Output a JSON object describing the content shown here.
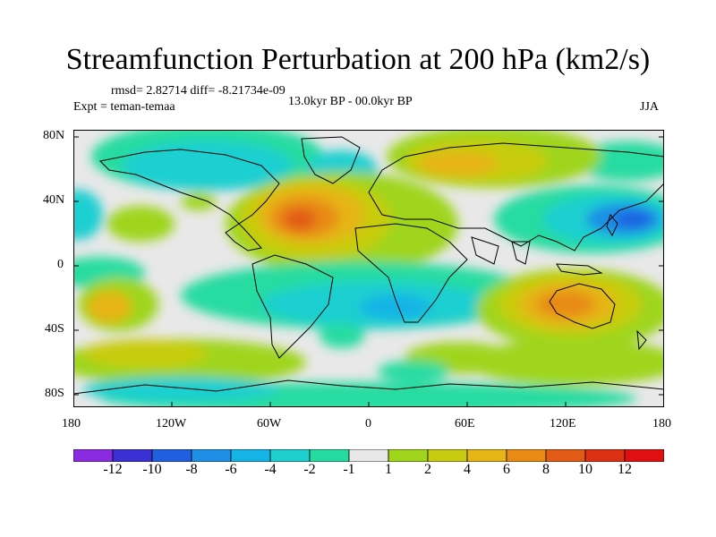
{
  "title": "Streamfunction Perturbation at 200 hPa (km2/s)",
  "stats": "rmsd= 2.82714 diff= -8.21734e-09",
  "expt": "Expt = teman-temaa",
  "period": "13.0kyr BP - 00.0kyr BP",
  "season": "JJA",
  "y_ticks": [
    "80N",
    "40N",
    "0",
    "40S",
    "80S"
  ],
  "x_ticks": [
    "180",
    "120W",
    "60W",
    "0",
    "60E",
    "120E",
    "180"
  ],
  "colorbar": {
    "labels": [
      "-12",
      "-10",
      "-8",
      "-6",
      "-4",
      "-2",
      "-1",
      "1",
      "2",
      "4",
      "6",
      "8",
      "10",
      "12"
    ],
    "colors": [
      "#8a2be2",
      "#3b2fd6",
      "#1f5fe0",
      "#1e8fe6",
      "#14b4e6",
      "#1ecfd0",
      "#25dca0",
      "#e8e8e8",
      "#9fd51a",
      "#c8cc10",
      "#e6b414",
      "#e88a14",
      "#e25a14",
      "#de3012",
      "#e01010"
    ]
  }
}
